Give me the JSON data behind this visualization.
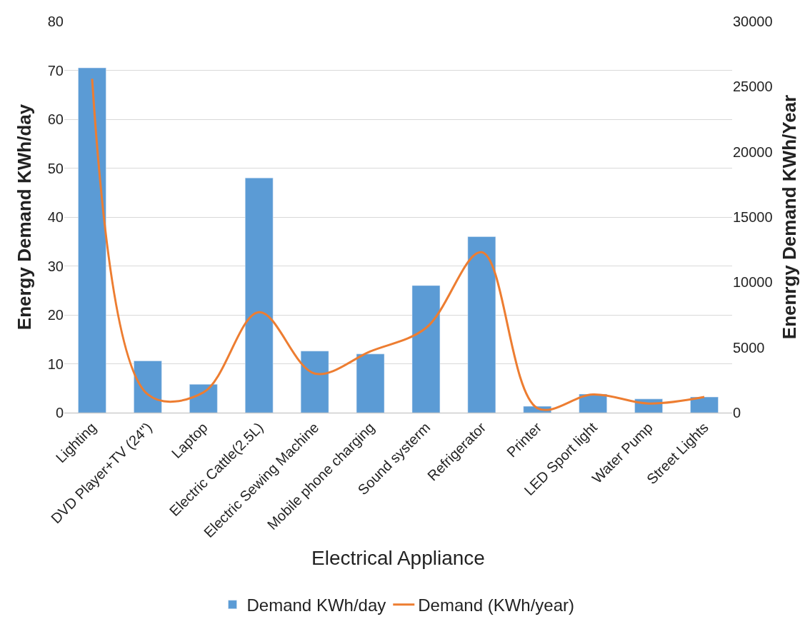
{
  "chart_data": {
    "type": "bar",
    "xlabel": "Electrical Appliance",
    "ylabel": "Energy Demand KWh/day",
    "y2label": "Enenrgy Demand KWh/Year",
    "categories": [
      "Lighting",
      "DVD Player+TV (24\")",
      "Laptop",
      "Electric Cattle(2.5L)",
      "Electric Sewing Machine",
      "Mobile phone charging",
      "Sound systerm",
      "Refrigerator",
      "Printer",
      "LED Sport light",
      "Water Pump",
      "Street Lights"
    ],
    "series": [
      {
        "name": "Demand KWh/day",
        "color": "#5b9bd5",
        "values": [
          70.5,
          10.6,
          5.8,
          48,
          12.6,
          12,
          26,
          36,
          1.3,
          3.8,
          2.8,
          3.2
        ]
      },
      {
        "name": "Demand (KWh/year)",
        "type": "line",
        "axis": "y2",
        "color": "#ed7d31",
        "values": [
          25600,
          1400,
          1550,
          7700,
          3000,
          4700,
          6500,
          12300,
          350,
          1400,
          700,
          1200
        ]
      }
    ],
    "ylim": [
      0,
      80
    ],
    "yticks": [
      0,
      10,
      20,
      30,
      40,
      50,
      60,
      70,
      80
    ],
    "y2lim": [
      0,
      30000
    ],
    "y2ticks": [
      0,
      5000,
      10000,
      15000,
      20000,
      25000,
      30000
    ],
    "grid": "y",
    "legend": "bottom",
    "marker": "none",
    "line_style": "solid"
  }
}
